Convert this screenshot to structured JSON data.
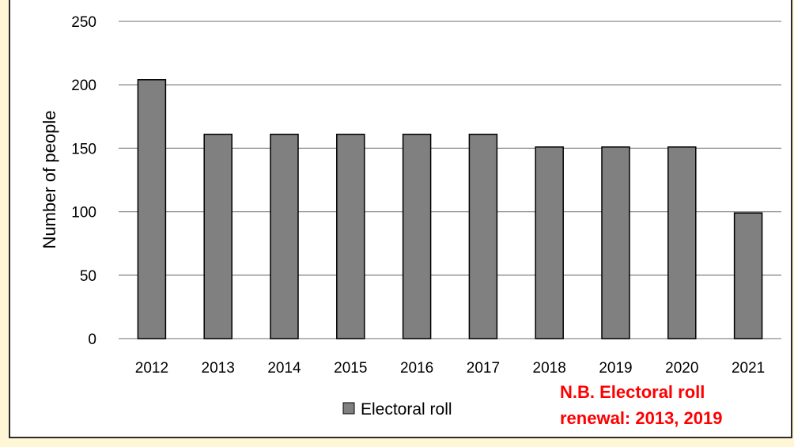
{
  "colors": {
    "page_background": "#fef6d4",
    "plot_background": "#ffffff",
    "bar_fill": "#808080",
    "bar_stroke": "#000000",
    "gridline": "#8c8c8c",
    "note": "#ff0000"
  },
  "chart_data": {
    "type": "bar",
    "title": "",
    "xlabel": "",
    "ylabel": "Number of people",
    "categories": [
      "2012",
      "2013",
      "2014",
      "2015",
      "2016",
      "2017",
      "2018",
      "2019",
      "2020",
      "2021"
    ],
    "series": [
      {
        "name": "Electoral roll",
        "values": [
          204,
          161,
          161,
          161,
          161,
          161,
          151,
          151,
          151,
          99
        ]
      }
    ],
    "ylim": [
      0,
      250
    ],
    "yticks": [
      "0",
      "50",
      "100",
      "150",
      "200",
      "250"
    ],
    "grid": true,
    "legend_position": "bottom",
    "annotation": {
      "line1": "N.B. Electoral roll",
      "line2": "renewal: 2013, 2019"
    }
  }
}
